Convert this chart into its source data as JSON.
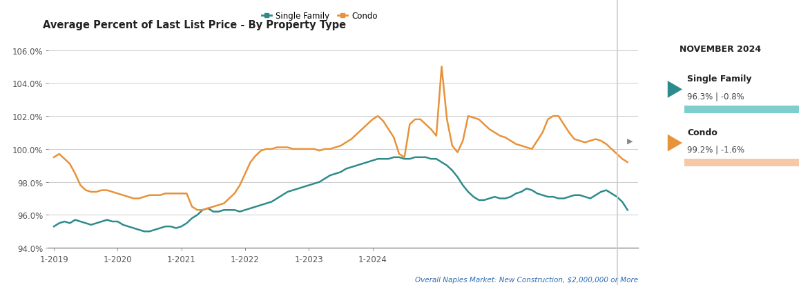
{
  "title": "Average Percent of Last List Price - By Property Type",
  "subtitle": "Overall Naples Market: New Construction, $2,000,000 or More",
  "sf_color": "#2e8b8b",
  "condo_color": "#e8923a",
  "sf_bar_color": "#7ecece",
  "condo_bar_color": "#f5c9a8",
  "ylim": [
    94.0,
    107.0
  ],
  "yticks": [
    94.0,
    96.0,
    98.0,
    100.0,
    102.0,
    104.0,
    106.0
  ],
  "xtick_positions": [
    0,
    12,
    24,
    36,
    48,
    60
  ],
  "xtick_labels": [
    "1-2019",
    "1-2020",
    "1-2021",
    "1-2022",
    "1-2023",
    "1-2024"
  ],
  "sidebar_title": "NOVEMBER 2024",
  "sf_label": "Single Family",
  "condo_label": "Condo",
  "sf_value": "96.3% | -0.8%",
  "condo_value": "99.2% | -1.6%",
  "single_family": [
    95.3,
    95.5,
    95.6,
    95.5,
    95.7,
    95.6,
    95.5,
    95.4,
    95.5,
    95.6,
    95.7,
    95.6,
    95.6,
    95.4,
    95.3,
    95.2,
    95.1,
    95.0,
    95.0,
    95.1,
    95.2,
    95.3,
    95.3,
    95.2,
    95.3,
    95.5,
    95.8,
    96.0,
    96.3,
    96.4,
    96.2,
    96.2,
    96.3,
    96.3,
    96.3,
    96.2,
    96.3,
    96.4,
    96.5,
    96.6,
    96.7,
    96.8,
    97.0,
    97.2,
    97.4,
    97.5,
    97.6,
    97.7,
    97.8,
    97.9,
    98.0,
    98.2,
    98.4,
    98.5,
    98.6,
    98.8,
    98.9,
    99.0,
    99.1,
    99.2,
    99.3,
    99.4,
    99.4,
    99.4,
    99.5,
    99.5,
    99.4,
    99.4,
    99.5,
    99.5,
    99.5,
    99.4,
    99.4,
    99.2,
    99.0,
    98.7,
    98.3,
    97.8,
    97.4,
    97.1,
    96.9,
    96.9,
    97.0,
    97.1,
    97.0,
    97.0,
    97.1,
    97.3,
    97.4,
    97.6,
    97.5,
    97.3,
    97.2,
    97.1,
    97.1,
    97.0,
    97.0,
    97.1,
    97.2,
    97.2,
    97.1,
    97.0,
    97.2,
    97.4,
    97.5,
    97.3,
    97.1,
    96.8,
    96.3
  ],
  "condo": [
    99.5,
    99.7,
    99.4,
    99.1,
    98.5,
    97.8,
    97.5,
    97.4,
    97.4,
    97.5,
    97.5,
    97.4,
    97.3,
    97.2,
    97.1,
    97.0,
    97.0,
    97.1,
    97.2,
    97.2,
    97.2,
    97.3,
    97.3,
    97.3,
    97.3,
    97.3,
    96.5,
    96.3,
    96.3,
    96.4,
    96.5,
    96.6,
    96.7,
    97.0,
    97.3,
    97.8,
    98.5,
    99.2,
    99.6,
    99.9,
    100.0,
    100.0,
    100.1,
    100.1,
    100.1,
    100.0,
    100.0,
    100.0,
    100.0,
    100.0,
    99.9,
    100.0,
    100.0,
    100.1,
    100.2,
    100.4,
    100.6,
    100.9,
    101.2,
    101.5,
    101.8,
    102.0,
    101.7,
    101.2,
    100.7,
    99.7,
    99.5,
    101.5,
    101.8,
    101.8,
    101.5,
    101.2,
    100.8,
    105.0,
    101.8,
    100.2,
    99.8,
    100.5,
    102.0,
    101.9,
    101.8,
    101.5,
    101.2,
    101.0,
    100.8,
    100.7,
    100.5,
    100.3,
    100.2,
    100.1,
    100.0,
    100.5,
    101.0,
    101.8,
    102.0,
    102.0,
    101.5,
    101.0,
    100.6,
    100.5,
    100.4,
    100.5,
    100.6,
    100.5,
    100.3,
    100.0,
    99.7,
    99.4,
    99.2
  ]
}
